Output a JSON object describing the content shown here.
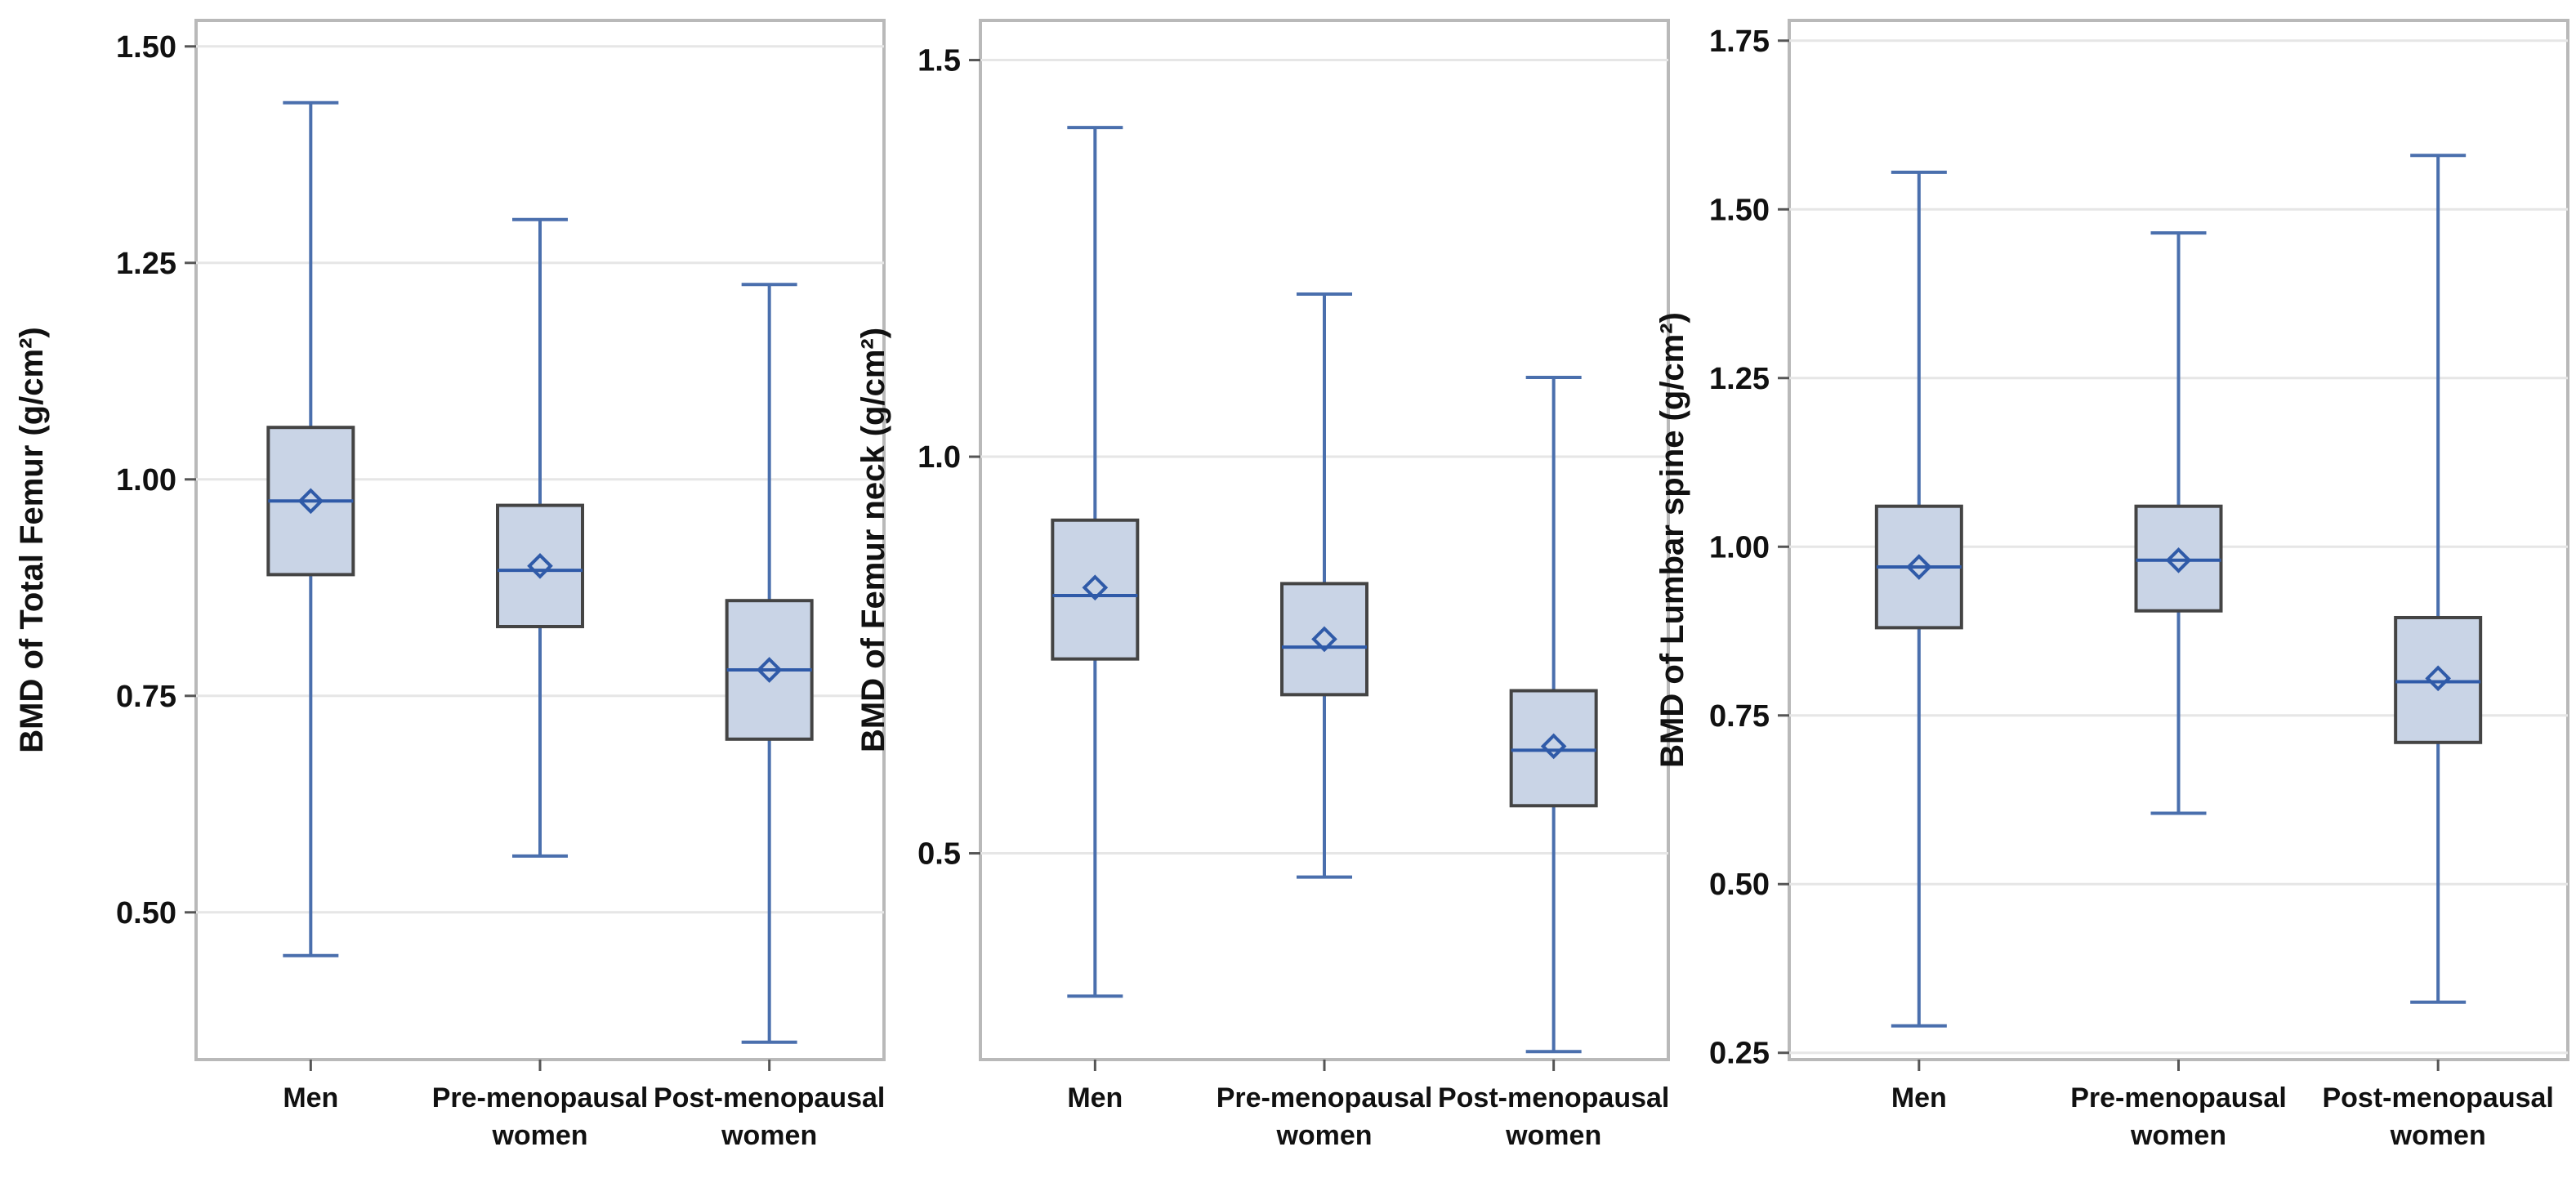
{
  "chart_data": [
    {
      "type": "boxplot",
      "ylabel": "BMD of Total Femur (g/cm²)",
      "ylim": [
        0.33,
        1.53
      ],
      "yticks": [
        {
          "value": 0.5,
          "label": "0.50"
        },
        {
          "value": 0.75,
          "label": "0.75"
        },
        {
          "value": 1.0,
          "label": "1.00"
        },
        {
          "value": 1.25,
          "label": "1.25"
        },
        {
          "value": 1.5,
          "label": "1.50"
        }
      ],
      "categories": [
        {
          "line1": "Men",
          "line2": ""
        },
        {
          "line1": "Pre-menopausal",
          "line2": "women"
        },
        {
          "line1": "Post-menopausal",
          "line2": "women"
        }
      ],
      "boxes": [
        {
          "min": 0.45,
          "q1": 0.89,
          "median": 0.975,
          "mean": 0.975,
          "q3": 1.06,
          "max": 1.435
        },
        {
          "min": 0.565,
          "q1": 0.83,
          "median": 0.895,
          "mean": 0.9,
          "q3": 0.97,
          "max": 1.3
        },
        {
          "min": 0.35,
          "q1": 0.7,
          "median": 0.78,
          "mean": 0.78,
          "q3": 0.86,
          "max": 1.225
        }
      ]
    },
    {
      "type": "boxplot",
      "ylabel": "BMD of Femur neck (g/cm²)",
      "ylim": [
        0.24,
        1.55
      ],
      "yticks": [
        {
          "value": 0.5,
          "label": "0.5"
        },
        {
          "value": 1.0,
          "label": "1.0"
        },
        {
          "value": 1.5,
          "label": "1.5"
        }
      ],
      "categories": [
        {
          "line1": "Men",
          "line2": ""
        },
        {
          "line1": "Pre-menopausal",
          "line2": "women"
        },
        {
          "line1": "Post-menopausal",
          "line2": "women"
        }
      ],
      "boxes": [
        {
          "min": 0.32,
          "q1": 0.745,
          "median": 0.825,
          "mean": 0.835,
          "q3": 0.92,
          "max": 1.415
        },
        {
          "min": 0.47,
          "q1": 0.7,
          "median": 0.76,
          "mean": 0.77,
          "q3": 0.84,
          "max": 1.205
        },
        {
          "min": 0.25,
          "q1": 0.56,
          "median": 0.63,
          "mean": 0.635,
          "q3": 0.705,
          "max": 1.1
        }
      ]
    },
    {
      "type": "boxplot",
      "ylabel": "BMD of Lumbar spine (g/cm²)",
      "ylim": [
        0.24,
        1.78
      ],
      "yticks": [
        {
          "value": 0.25,
          "label": "0.25"
        },
        {
          "value": 0.5,
          "label": "0.50"
        },
        {
          "value": 0.75,
          "label": "0.75"
        },
        {
          "value": 1.0,
          "label": "1.00"
        },
        {
          "value": 1.25,
          "label": "1.25"
        },
        {
          "value": 1.5,
          "label": "1.50"
        },
        {
          "value": 1.75,
          "label": "1.75"
        }
      ],
      "categories": [
        {
          "line1": "Men",
          "line2": ""
        },
        {
          "line1": "Pre-menopausal",
          "line2": "women"
        },
        {
          "line1": "Post-menopausal",
          "line2": "women"
        }
      ],
      "boxes": [
        {
          "min": 0.29,
          "q1": 0.88,
          "median": 0.97,
          "mean": 0.97,
          "q3": 1.06,
          "max": 1.555
        },
        {
          "min": 0.605,
          "q1": 0.905,
          "median": 0.98,
          "mean": 0.98,
          "q3": 1.06,
          "max": 1.465
        },
        {
          "min": 0.325,
          "q1": 0.71,
          "median": 0.8,
          "mean": 0.805,
          "q3": 0.895,
          "max": 1.58
        }
      ]
    }
  ]
}
